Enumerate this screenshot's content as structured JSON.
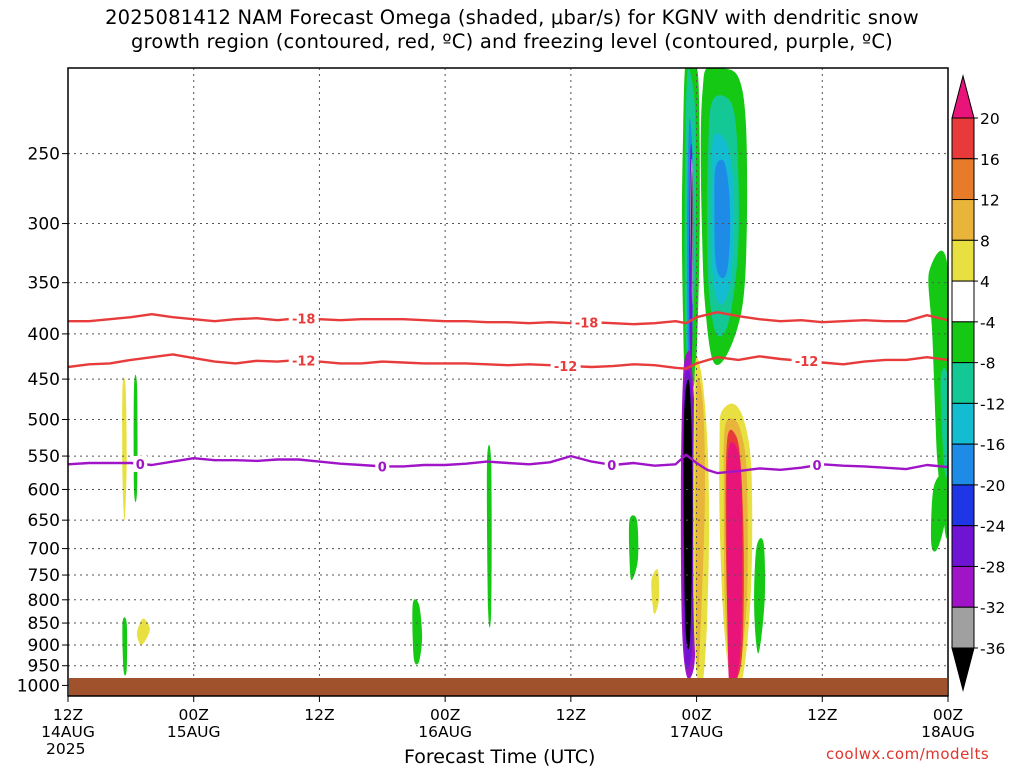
{
  "title": {
    "line1": "2025081412 NAM Forecast Omega (shaded, μbar/s) for KGNV with dendritic snow",
    "line2": "growth region (contoured, red, ºC) and freezing level (contoured, purple, ºC)"
  },
  "credit": "coolwx.com/modelts",
  "chart_data": {
    "type": "heatmap",
    "xlabel": "Forecast Time (UTC)",
    "ylabel": "",
    "x_range_hours": [
      0,
      84
    ],
    "y_scale": "log-pressure",
    "ylim_hPa": [
      1000,
      200
    ],
    "grid": true,
    "x_ticks": [
      {
        "hour": 0,
        "l1": "12Z",
        "l2": "14AUG",
        "l3": "2025"
      },
      {
        "hour": 12,
        "l1": "00Z",
        "l2": "15AUG",
        "l3": ""
      },
      {
        "hour": 24,
        "l1": "12Z",
        "l2": "",
        "l3": ""
      },
      {
        "hour": 36,
        "l1": "00Z",
        "l2": "16AUG",
        "l3": ""
      },
      {
        "hour": 48,
        "l1": "12Z",
        "l2": "",
        "l3": ""
      },
      {
        "hour": 60,
        "l1": "00Z",
        "l2": "17AUG",
        "l3": ""
      },
      {
        "hour": 72,
        "l1": "12Z",
        "l2": "",
        "l3": ""
      },
      {
        "hour": 84,
        "l1": "00Z",
        "l2": "18AUG",
        "l3": ""
      }
    ],
    "y_ticks": [
      250,
      300,
      350,
      400,
      450,
      500,
      550,
      600,
      650,
      700,
      750,
      800,
      850,
      900,
      950,
      1000
    ],
    "colorbar": {
      "labels": [
        "20",
        "16",
        "12",
        "8",
        "4",
        "-4",
        "-8",
        "-12",
        "-16",
        "-20",
        "-24",
        "-28",
        "-32",
        "-36"
      ],
      "colors": [
        "#e8147a",
        "#e83a3a",
        "#e87b2a",
        "#e8b43a",
        "#e8e040",
        "#ffffff",
        "#14c814",
        "#14c896",
        "#14bcd2",
        "#1e8ce6",
        "#1e36e6",
        "#6e14d2",
        "#a014c8",
        "#a0a0a0",
        "#000000"
      ]
    },
    "contours": {
      "freezing_level_color": "#a014c8",
      "dgz_color": "#e83c3c",
      "lines": [
        {
          "name": "-18",
          "color": "#e83c3c",
          "hours": [
            0,
            2,
            4,
            6,
            8,
            10,
            12,
            14,
            16,
            18,
            20,
            22,
            24,
            26,
            28,
            30,
            32,
            34,
            36,
            38,
            40,
            42,
            44,
            46,
            48,
            50,
            52,
            54,
            56,
            58,
            59,
            60,
            62,
            64,
            66,
            68,
            70,
            72,
            74,
            76,
            78,
            80,
            82,
            84
          ],
          "p": [
            387,
            387,
            385,
            383,
            380,
            383,
            385,
            387,
            385,
            384,
            386,
            384,
            385,
            386,
            385,
            385,
            385,
            386,
            387,
            387,
            388,
            388,
            389,
            388,
            389,
            388,
            389,
            390,
            389,
            387,
            389,
            383,
            378,
            382,
            385,
            387,
            386,
            388,
            387,
            386,
            387,
            387,
            381,
            386
          ],
          "labels": [
            {
              "hour": 22.5,
              "text": "-18"
            },
            {
              "hour": 49.5,
              "text": "-18"
            }
          ]
        },
        {
          "name": "-12",
          "color": "#e83c3c",
          "hours": [
            0,
            2,
            4,
            6,
            8,
            10,
            12,
            14,
            16,
            18,
            20,
            22,
            24,
            26,
            28,
            30,
            32,
            34,
            36,
            38,
            40,
            42,
            44,
            46,
            48,
            50,
            52,
            54,
            56,
            58,
            59,
            60,
            62,
            64,
            66,
            68,
            70,
            72,
            74,
            76,
            78,
            80,
            82,
            84
          ],
          "p": [
            436,
            433,
            432,
            428,
            425,
            422,
            426,
            430,
            432,
            429,
            430,
            428,
            430,
            432,
            432,
            430,
            431,
            432,
            432,
            432,
            433,
            434,
            433,
            434,
            435,
            436,
            435,
            433,
            434,
            437,
            438,
            432,
            425,
            428,
            424,
            427,
            429,
            431,
            433,
            430,
            428,
            428,
            425,
            428
          ],
          "labels": [
            {
              "hour": 22.5,
              "text": "-12"
            },
            {
              "hour": 47.5,
              "text": "-12"
            },
            {
              "hour": 70.5,
              "text": "-12"
            }
          ]
        },
        {
          "name": "0",
          "color": "#a014c8",
          "hours": [
            0,
            2,
            4,
            6,
            8,
            10,
            12,
            14,
            16,
            18,
            20,
            22,
            24,
            26,
            28,
            30,
            32,
            34,
            36,
            38,
            40,
            42,
            44,
            46,
            48,
            50,
            52,
            54,
            56,
            58,
            59,
            60,
            61,
            62,
            64,
            66,
            68,
            70,
            72,
            74,
            76,
            78,
            80,
            82,
            84
          ],
          "p": [
            562,
            560,
            560,
            560,
            563,
            558,
            553,
            556,
            556,
            557,
            555,
            555,
            558,
            561,
            563,
            565,
            565,
            563,
            563,
            561,
            558,
            560,
            562,
            559,
            550,
            558,
            563,
            560,
            564,
            562,
            548,
            560,
            570,
            575,
            572,
            568,
            570,
            567,
            562,
            564,
            565,
            567,
            569,
            563,
            566
          ],
          "labels": [
            {
              "hour": 6.9,
              "text": "0"
            },
            {
              "hour": 30,
              "text": "0"
            },
            {
              "hour": 51.9,
              "text": "0"
            },
            {
              "hour": 71.5,
              "text": "0"
            }
          ]
        }
      ]
    },
    "omega_regions": [
      {
        "name": "upper-green-col-1",
        "color": "#14c814",
        "hours": [
          58.9,
          59.3,
          59.8,
          60.2,
          60.3,
          60.0,
          59.5,
          58.9,
          58.7,
          58.6,
          58.7
        ],
        "p": [
          200,
          200,
          200,
          210,
          300,
          420,
          470,
          450,
          380,
          300,
          240
        ]
      },
      {
        "name": "upper-teal-col-1",
        "color": "#14c896",
        "hours": [
          59.1,
          59.5,
          59.9,
          59.9,
          59.6,
          59.2,
          58.9,
          58.9
        ],
        "p": [
          205,
          205,
          230,
          320,
          400,
          430,
          380,
          260
        ]
      },
      {
        "name": "upper-blue-col-1",
        "color": "#1e8ce6",
        "hours": [
          59.3,
          59.6,
          59.7,
          59.5,
          59.2,
          59.1
        ],
        "p": [
          230,
          250,
          330,
          420,
          430,
          300
        ]
      },
      {
        "name": "upper-purple-col-1",
        "color": "#6e14d2",
        "hours": [
          59.4,
          59.6,
          59.6,
          59.4,
          59.3
        ],
        "p": [
          250,
          260,
          400,
          440,
          330
        ]
      },
      {
        "name": "upper-gray-col-1",
        "color": "#a0a0a0",
        "hours": [
          59.5,
          59.65,
          59.6,
          59.4
        ],
        "p": [
          255,
          270,
          370,
          300
        ]
      },
      {
        "name": "upper-black-col-1",
        "color": "#000000",
        "hours": [
          59.55,
          59.6,
          59.55,
          59.5
        ],
        "p": [
          262,
          280,
          355,
          300
        ]
      },
      {
        "name": "upper-green-col-2",
        "color": "#14c814",
        "hours": [
          61.0,
          62.5,
          64.0,
          64.7,
          64.8,
          64.4,
          63.0,
          61.6,
          60.8,
          60.5,
          60.4,
          60.6
        ],
        "p": [
          200,
          200,
          205,
          230,
          300,
          370,
          420,
          430,
          370,
          300,
          240,
          210
        ]
      },
      {
        "name": "upper-teal-col-2",
        "color": "#14c896",
        "hours": [
          61.4,
          62.5,
          63.6,
          64.0,
          63.9,
          63.0,
          61.9,
          61.2,
          61.0,
          61.1
        ],
        "p": [
          220,
          215,
          225,
          270,
          330,
          390,
          400,
          360,
          300,
          250
        ]
      },
      {
        "name": "upper-lightblue-col-2",
        "color": "#14bcd2",
        "hours": [
          61.6,
          62.6,
          63.3,
          63.6,
          63.3,
          62.5,
          61.8,
          61.4,
          61.5
        ],
        "p": [
          240,
          240,
          255,
          290,
          345,
          370,
          360,
          320,
          270
        ]
      },
      {
        "name": "upper-blue-col-2",
        "color": "#1e8ce6",
        "hours": [
          61.8,
          62.6,
          63.1,
          63.2,
          62.9,
          62.3,
          61.8,
          61.7
        ],
        "p": [
          260,
          255,
          275,
          310,
          340,
          345,
          330,
          290
        ]
      },
      {
        "name": "left-black-column",
        "color": "#a014c8",
        "hours": [
          58.7,
          59.1,
          59.5,
          59.9,
          60.0,
          59.9,
          59.6,
          59.0,
          58.6,
          58.5
        ],
        "p": [
          450,
          420,
          430,
          520,
          700,
          900,
          970,
          970,
          850,
          600
        ]
      },
      {
        "name": "left-black-column-inner",
        "color": "#6e14d2",
        "hours": [
          58.8,
          59.2,
          59.6,
          59.8,
          59.7,
          59.4,
          58.9,
          58.7
        ],
        "p": [
          470,
          440,
          470,
          600,
          850,
          940,
          930,
          700
        ]
      },
      {
        "name": "left-black-column-core",
        "color": "#000000",
        "hours": [
          58.8,
          59.2,
          59.5,
          59.6,
          59.4,
          59.0,
          58.8
        ],
        "p": [
          500,
          450,
          500,
          650,
          880,
          880,
          700
        ]
      },
      {
        "name": "warm-column-orange",
        "color": "#e8e040",
        "hours": [
          59.8,
          60.4,
          61.0,
          61.2,
          61.0,
          60.6,
          60.1,
          59.7
        ],
        "p": [
          450,
          440,
          520,
          650,
          850,
          990,
          990,
          800
        ]
      },
      {
        "name": "warm-column-orange-inner",
        "color": "#e8b43a",
        "hours": [
          60.0,
          60.6,
          60.8,
          60.5,
          60.1,
          59.9
        ],
        "p": [
          460,
          480,
          600,
          800,
          960,
          700
        ]
      },
      {
        "name": "pink-core-column",
        "color": "#e8e040",
        "hours": [
          62.4,
          63.5,
          64.5,
          65.2,
          65.3,
          65.0,
          64.3,
          63.3,
          62.6,
          62.2,
          62.2
        ],
        "p": [
          490,
          480,
          500,
          560,
          700,
          850,
          990,
          990,
          850,
          650,
          520
        ]
      },
      {
        "name": "pink-core-column-orange",
        "color": "#e8b43a",
        "hours": [
          62.7,
          63.6,
          64.3,
          64.8,
          64.8,
          64.0,
          63.2,
          62.7,
          62.6
        ],
        "p": [
          510,
          500,
          520,
          580,
          800,
          960,
          960,
          800,
          600
        ]
      },
      {
        "name": "pink-core-column-red",
        "color": "#e83a3a",
        "hours": [
          62.9,
          63.7,
          64.2,
          64.5,
          64.4,
          63.9,
          63.2,
          62.8
        ],
        "p": [
          530,
          520,
          560,
          700,
          900,
          980,
          970,
          700
        ]
      },
      {
        "name": "pink-core-column-magenta",
        "color": "#e8147a",
        "hours": [
          63.0,
          63.9,
          64.3,
          64.3,
          63.8,
          63.1,
          62.9
        ],
        "p": [
          545,
          540,
          600,
          850,
          990,
          990,
          700
        ]
      },
      {
        "name": "green-scattered-1",
        "color": "#14c814",
        "hours": [
          6.3,
          6.6,
          6.6,
          6.3
        ],
        "p": [
          460,
          460,
          600,
          600
        ]
      },
      {
        "name": "yellow-scattered-1",
        "color": "#e8e040",
        "hours": [
          5.2,
          5.5,
          5.6,
          5.4,
          5.2
        ],
        "p": [
          460,
          460,
          560,
          650,
          580
        ]
      },
      {
        "name": "green-scattered-2",
        "color": "#14c814",
        "hours": [
          5.2,
          5.6,
          5.6,
          5.3
        ],
        "p": [
          850,
          850,
          960,
          960
        ]
      },
      {
        "name": "yellow-scattered-2",
        "color": "#e8e040",
        "hours": [
          6.7,
          7.2,
          7.8,
          7.6,
          7.0,
          6.6
        ],
        "p": [
          860,
          840,
          860,
          880,
          900,
          880
        ]
      },
      {
        "name": "green-scattered-3",
        "color": "#14c814",
        "hours": [
          32.9,
          33.5,
          33.8,
          33.5,
          33.0
        ],
        "p": [
          810,
          810,
          880,
          940,
          930
        ]
      },
      {
        "name": "green-scattered-4",
        "color": "#14c814",
        "hours": [
          40.0,
          40.4,
          40.4,
          40.1
        ],
        "p": [
          560,
          560,
          820,
          820
        ]
      },
      {
        "name": "green-scattered-5",
        "color": "#14c814",
        "hours": [
          53.6,
          54.3,
          54.4,
          53.8,
          53.6
        ],
        "p": [
          650,
          650,
          720,
          760,
          720
        ]
      },
      {
        "name": "yellow-scattered-5",
        "color": "#e8e040",
        "hours": [
          55.7,
          56.3,
          56.4,
          56.0,
          55.8
        ],
        "p": [
          760,
          740,
          800,
          830,
          810
        ]
      },
      {
        "name": "green-scattered-6",
        "color": "#14c814",
        "hours": [
          65.7,
          66.4,
          66.5,
          65.9,
          65.5
        ],
        "p": [
          700,
          690,
          800,
          920,
          820
        ]
      },
      {
        "name": "green-right-edge",
        "color": "#14c814",
        "hours": [
          82.2,
          84,
          84,
          83.5,
          83.0,
          82.8,
          82.5
        ],
        "p": [
          340,
          340,
          650,
          640,
          560,
          500,
          400
        ]
      },
      {
        "name": "teal-right-edge",
        "color": "#14c896",
        "hours": [
          83.3,
          84,
          84,
          83.6
        ],
        "p": [
          450,
          450,
          570,
          560
        ]
      },
      {
        "name": "green-right-low",
        "color": "#14c814",
        "hours": [
          82.6,
          83.5,
          83.8,
          83.0,
          82.4
        ],
        "p": [
          600,
          580,
          640,
          700,
          690
        ]
      }
    ],
    "ground_color": "#a0522d"
  }
}
